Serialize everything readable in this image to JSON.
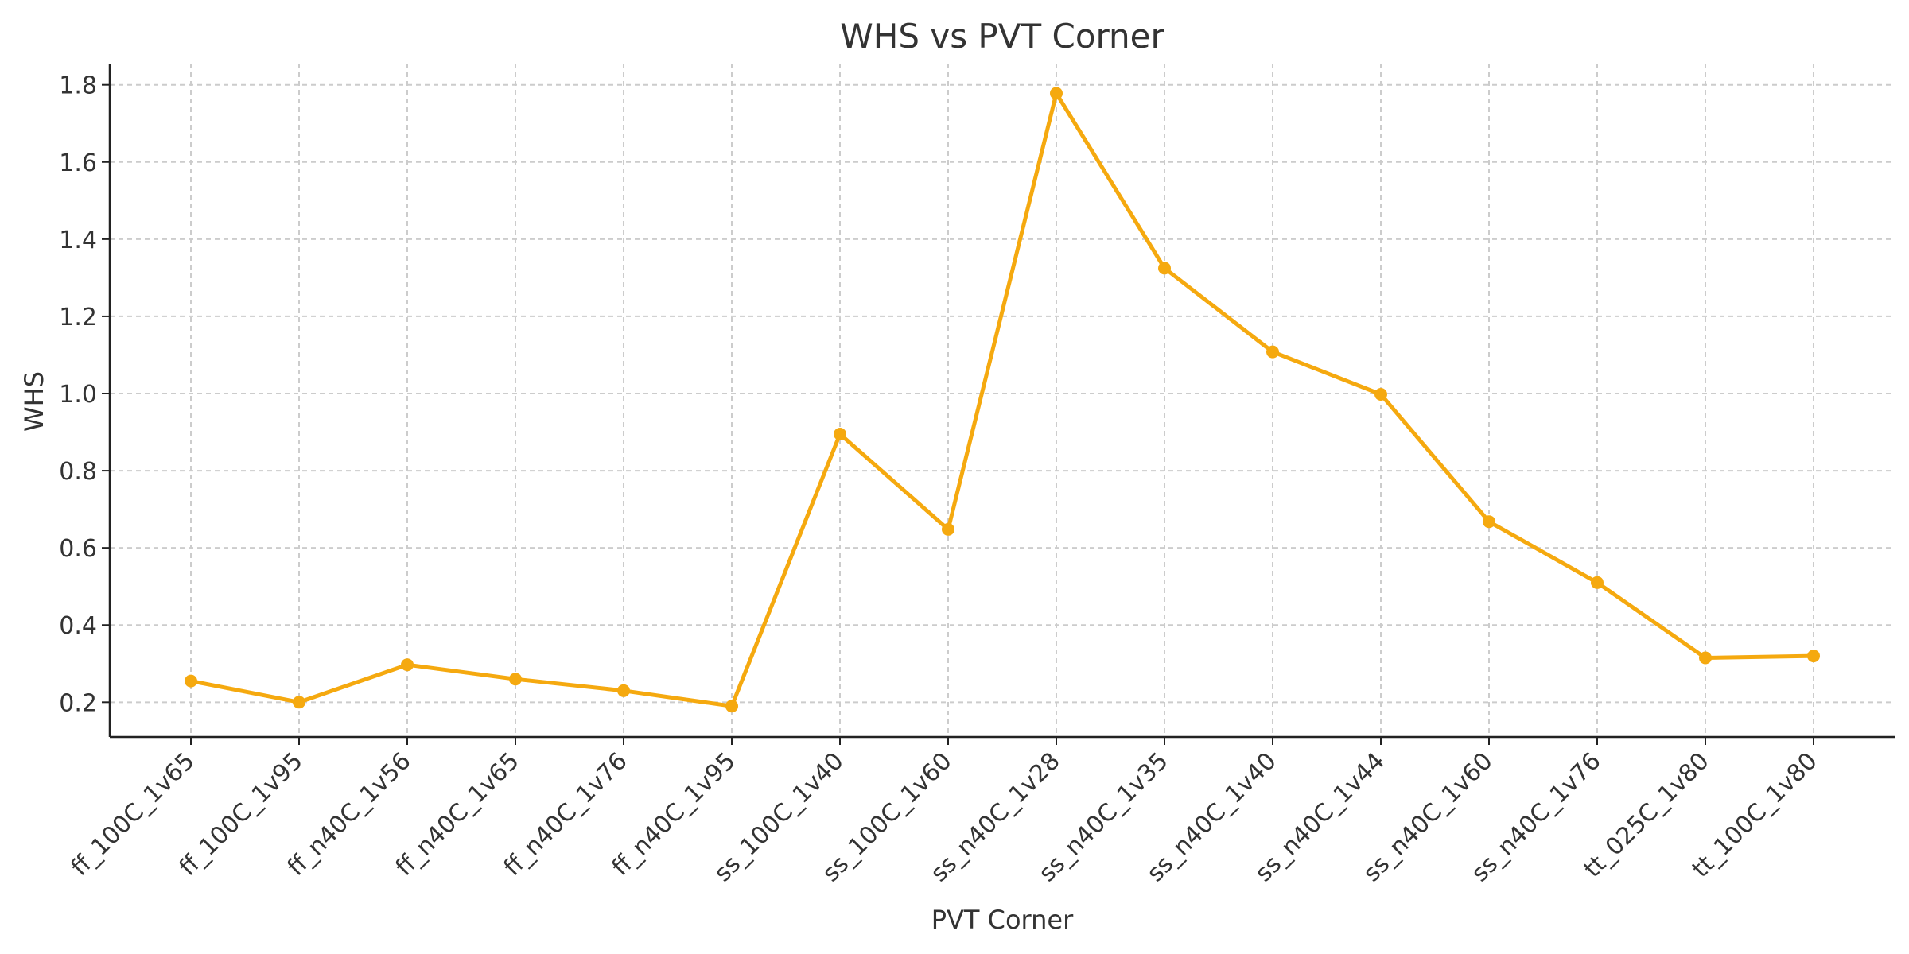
{
  "chart_data": {
    "type": "line",
    "title": "WHS vs PVT Corner",
    "xlabel": "PVT Corner",
    "ylabel": "WHS",
    "categories": [
      "ff_100C_1v65",
      "ff_100C_1v95",
      "ff_n40C_1v56",
      "ff_n40C_1v65",
      "ff_n40C_1v76",
      "ff_n40C_1v95",
      "ss_100C_1v40",
      "ss_100C_1v60",
      "ss_n40C_1v28",
      "ss_n40C_1v35",
      "ss_n40C_1v40",
      "ss_n40C_1v44",
      "ss_n40C_1v60",
      "ss_n40C_1v76",
      "tt_025C_1v80",
      "tt_100C_1v80"
    ],
    "values": [
      0.255,
      0.2,
      0.297,
      0.26,
      0.23,
      0.19,
      0.895,
      0.648,
      1.778,
      1.325,
      1.108,
      0.998,
      0.668,
      0.51,
      0.315,
      0.32
    ],
    "yticks": [
      0.2,
      0.4,
      0.6,
      0.8,
      1.0,
      1.2,
      1.4,
      1.6,
      1.8
    ],
    "ytick_labels": [
      "0.2",
      "0.4",
      "0.6",
      "0.8",
      "1.0",
      "1.2",
      "1.4",
      "1.6",
      "1.8"
    ],
    "ylim": [
      0.11,
      1.855
    ],
    "grid": true,
    "line_color": "#f5a90f",
    "marker": "circle"
  }
}
